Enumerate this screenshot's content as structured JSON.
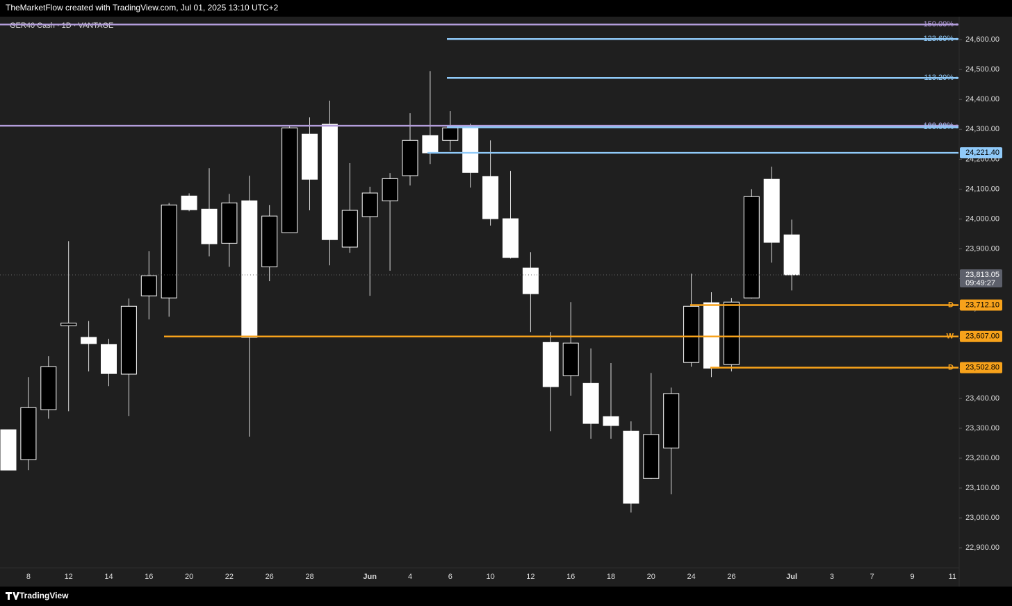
{
  "chart_data": {
    "type": "candlestick",
    "attribution": "TheMarketFlow created with TradingView.com, Jul 01, 2025 13:10 UTC+2",
    "title": "GER40 Cash · 1D · VANTAGE",
    "brand": "TradingView",
    "categories": [
      null,
      "8",
      null,
      "12",
      null,
      "14",
      null,
      "16",
      null,
      "20",
      null,
      "22",
      null,
      "26",
      null,
      "28",
      null,
      null,
      "Jun",
      null,
      "4",
      null,
      "6",
      null,
      "10",
      null,
      "12",
      null,
      "16",
      null,
      "18",
      null,
      "20",
      null,
      "24",
      null,
      "26",
      null,
      null,
      "Jul",
      null,
      "3",
      null,
      "7",
      null,
      "9",
      null,
      "11"
    ],
    "open": [
      23295,
      23195,
      23362,
      23643,
      23604,
      23580,
      23481,
      23743,
      23736,
      24077,
      24033,
      23919,
      24061,
      23840,
      23954,
      24284,
      24317,
      23906,
      24008,
      24061,
      24145,
      24279,
      24263,
      24308,
      24142,
      24001,
      23836,
      23587,
      23476,
      23450,
      23339,
      23290,
      23132,
      23234,
      23520,
      23720,
      23513,
      23736,
      24133,
      23947,
      null,
      null,
      null,
      null,
      null,
      null,
      null,
      null
    ],
    "high": [
      23295,
      23471,
      23541,
      23926,
      23659,
      23599,
      23734,
      23892,
      24054,
      24086,
      24170,
      24084,
      24145,
      24047,
      24310,
      24340,
      24396,
      24187,
      24108,
      24154,
      24354,
      24495,
      24361,
      24319,
      24263,
      24161,
      23889,
      23622,
      23722,
      23567,
      23518,
      23323,
      23485,
      23436,
      23817,
      23755,
      23736,
      24100,
      24175,
      23998,
      null,
      null,
      null,
      null,
      null,
      null,
      null,
      null
    ],
    "low": [
      23160,
      23160,
      23332,
      23357,
      23490,
      23441,
      23341,
      23664,
      23673,
      24026,
      23875,
      23840,
      23272,
      23792,
      23954,
      24029,
      23845,
      23887,
      23743,
      23827,
      24112,
      24184,
      24228,
      24105,
      23978,
      23868,
      23622,
      23290,
      23409,
      23265,
      23265,
      23018,
      23130,
      23079,
      23506,
      23471,
      23490,
      23734,
      23854,
      23761,
      null,
      null,
      null,
      null,
      null,
      null,
      null,
      null
    ],
    "close": [
      23160,
      23369,
      23506,
      23652,
      23583,
      23483,
      23708,
      23810,
      24047,
      24031,
      23917,
      24054,
      23604,
      24010,
      24305,
      24133,
      23931,
      24029,
      24087,
      24135,
      24263,
      24221,
      24305,
      24156,
      24001,
      23871,
      23750,
      23439,
      23585,
      23316,
      23309,
      23049,
      23279,
      23416,
      23708,
      23501,
      23722,
      24075,
      23922,
      23813.05,
      null,
      null,
      null,
      null,
      null,
      null,
      null,
      null
    ],
    "up_color": "#000000",
    "down_color": "#ffffff",
    "ylim": [
      22833,
      24677
    ],
    "yticks": [
      {
        "value": 22900,
        "label": "22,900.00"
      },
      {
        "value": 23000,
        "label": "23,000.00"
      },
      {
        "value": 23100,
        "label": "23,100.00"
      },
      {
        "value": 23200,
        "label": "23,200.00"
      },
      {
        "value": 23300,
        "label": "23,300.00"
      },
      {
        "value": 23400,
        "label": "23,400.00"
      },
      {
        "value": 23500,
        "label": "23,500.00"
      },
      {
        "value": 23600,
        "label": "23,600.00"
      },
      {
        "value": 23700,
        "label": "23,700.00"
      },
      {
        "value": 23800,
        "label": "23,800.00"
      },
      {
        "value": 23900,
        "label": "23,900.00"
      },
      {
        "value": 24000,
        "label": "24,000.00"
      },
      {
        "value": 24100,
        "label": "24,100.00"
      },
      {
        "value": 24200,
        "label": "24,200.00"
      },
      {
        "value": 24300,
        "label": "24,300.00"
      },
      {
        "value": 24400,
        "label": "24,400.00"
      },
      {
        "value": 24500,
        "label": "24,500.00"
      },
      {
        "value": 24600,
        "label": "24,600.00"
      }
    ],
    "levels": [
      {
        "name": "150.00%",
        "value": 24651,
        "color": "#b39ddb"
      },
      {
        "name": "123.60%",
        "value": 24602,
        "color": "#90caf9"
      },
      {
        "name": "113.20%",
        "value": 24472,
        "color": "#90caf9"
      },
      {
        "name": "100.00%",
        "value": 24312,
        "color": "#b39ddb"
      },
      {
        "name": "100.00%",
        "value": 24307,
        "color": "#90caf9"
      },
      {
        "value": 24221.4,
        "value_label": "24,221.40",
        "color": "#90caf9"
      },
      {
        "name": "D",
        "value": 23712.1,
        "value_label": "23,712.10",
        "color": "#f7a21b"
      },
      {
        "name": "W",
        "value": 23607,
        "value_label": "23,607.00",
        "color": "#f7a21b"
      },
      {
        "name": "D",
        "value": 23502.8,
        "value_label": "23,502.80",
        "color": "#f7a21b"
      }
    ],
    "last_price": {
      "value": 23813.05,
      "value_label": "23,813.05",
      "countdown": "09:49:27"
    }
  }
}
